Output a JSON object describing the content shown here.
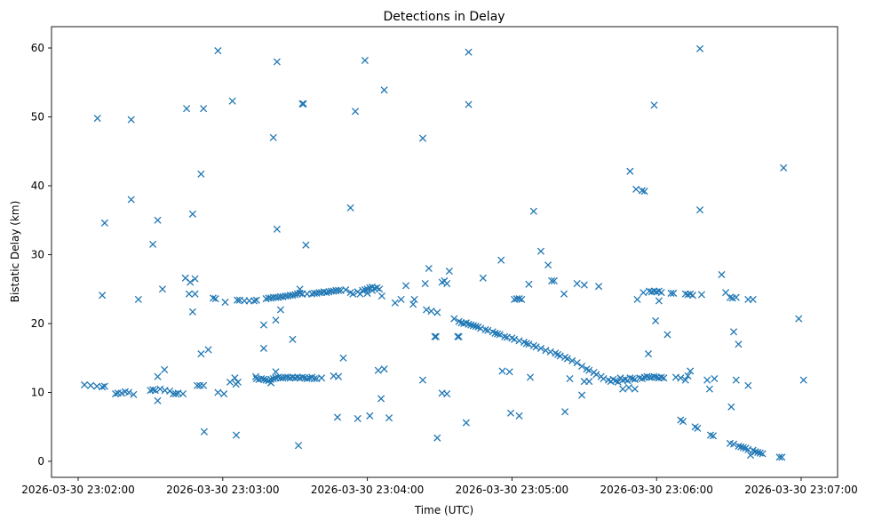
{
  "chart_data": {
    "type": "scatter",
    "title": "Detections in Delay",
    "xlabel": "Time (UTC)",
    "ylabel": "Bistatic Delay (km)",
    "x_unit": "seconds after 2026-03-30 23:02:00",
    "xlim": [
      -11,
      315
    ],
    "ylim": [
      -2.2,
      62.7
    ],
    "grid": false,
    "marker": "x",
    "color": "#1f77b4",
    "x_ticks": [
      {
        "value": 0,
        "label": "2026-03-30 23:02:00"
      },
      {
        "value": 60,
        "label": "2026-03-30 23:03:00"
      },
      {
        "value": 120,
        "label": "2026-03-30 23:04:00"
      },
      {
        "value": 180,
        "label": "2026-03-30 23:05:00"
      },
      {
        "value": 240,
        "label": "2026-03-30 23:06:00"
      },
      {
        "value": 300,
        "label": "2026-03-30 23:07:00"
      }
    ],
    "y_ticks": [
      {
        "value": 0,
        "label": "0"
      },
      {
        "value": 10,
        "label": "10"
      },
      {
        "value": 20,
        "label": "20"
      },
      {
        "value": 30,
        "label": "30"
      },
      {
        "value": 40,
        "label": "40"
      },
      {
        "value": 50,
        "label": "50"
      },
      {
        "value": 60,
        "label": "60"
      }
    ],
    "points": [
      [
        8,
        49.8
      ],
      [
        11,
        34.6
      ],
      [
        10,
        24.1
      ],
      [
        22,
        49.6
      ],
      [
        22,
        38
      ],
      [
        25,
        23.5
      ],
      [
        31,
        31.5
      ],
      [
        33,
        35
      ],
      [
        35,
        25
      ],
      [
        45,
        51.2
      ],
      [
        52,
        51.2
      ],
      [
        51,
        41.7
      ],
      [
        47.5,
        35.9
      ],
      [
        44.5,
        26.6
      ],
      [
        46,
        24.3
      ],
      [
        48.5,
        24.3
      ],
      [
        46.5,
        26
      ],
      [
        48.5,
        26.5
      ],
      [
        47.5,
        21.7
      ],
      [
        51,
        15.6
      ],
      [
        54,
        16.2
      ],
      [
        58,
        59.6
      ],
      [
        56,
        23.7
      ],
      [
        57,
        23.6
      ],
      [
        64,
        52.3
      ],
      [
        61,
        23.1
      ],
      [
        66,
        23.4
      ],
      [
        67,
        23.4
      ],
      [
        69,
        23.3
      ],
      [
        71,
        23.3
      ],
      [
        73,
        23.3
      ],
      [
        74,
        23.4
      ],
      [
        81,
        47
      ],
      [
        82.5,
        58
      ],
      [
        82.5,
        33.7
      ],
      [
        93,
        51.9
      ],
      [
        93.5,
        51.9
      ],
      [
        94.5,
        31.4
      ],
      [
        77,
        19.8
      ],
      [
        82,
        20.5
      ],
      [
        84,
        22
      ],
      [
        77,
        16.4
      ],
      [
        89,
        17.7
      ],
      [
        92,
        25
      ],
      [
        113,
        36.8
      ],
      [
        115,
        50.8
      ],
      [
        119,
        58.2
      ],
      [
        127,
        53.9
      ],
      [
        110,
        15
      ],
      [
        126,
        24
      ],
      [
        131.5,
        23
      ],
      [
        134,
        23.5
      ],
      [
        136,
        25.5
      ],
      [
        139.5,
        23.5
      ],
      [
        139,
        22.8
      ],
      [
        143,
        46.9
      ],
      [
        144,
        25.8
      ],
      [
        145.5,
        28
      ],
      [
        144.5,
        22
      ],
      [
        146.5,
        21.8
      ],
      [
        148,
        18.1
      ],
      [
        148.5,
        18.1
      ],
      [
        149,
        21.6
      ],
      [
        151,
        26
      ],
      [
        152,
        26.2
      ],
      [
        153,
        25.8
      ],
      [
        154,
        27.6
      ],
      [
        156,
        20.7
      ],
      [
        157.5,
        18.1
      ],
      [
        158,
        18.1
      ],
      [
        162,
        59.4
      ],
      [
        162,
        51.8
      ],
      [
        168,
        26.6
      ],
      [
        175.5,
        29.2
      ],
      [
        189,
        36.3
      ],
      [
        192,
        30.5
      ],
      [
        195,
        28.5
      ],
      [
        196.5,
        26.2
      ],
      [
        197.5,
        26.2
      ],
      [
        187,
        25.7
      ],
      [
        201.6,
        24.3
      ],
      [
        207,
        25.8
      ],
      [
        210,
        25.6
      ],
      [
        216,
        25.4
      ],
      [
        181,
        23.5
      ],
      [
        182,
        23.6
      ],
      [
        183,
        23.6
      ],
      [
        184,
        23.5
      ],
      [
        229,
        42.1
      ],
      [
        231.5,
        39.5
      ],
      [
        234,
        39.3
      ],
      [
        235,
        39.2
      ],
      [
        239,
        51.7
      ],
      [
        258,
        59.9
      ],
      [
        258,
        36.5
      ],
      [
        292.7,
        42.6
      ],
      [
        299,
        20.7
      ],
      [
        301,
        11.8
      ],
      [
        232,
        23.5
      ],
      [
        234.5,
        24.5
      ],
      [
        237,
        24.7
      ],
      [
        238,
        24.6
      ],
      [
        239,
        24.7
      ],
      [
        240,
        24.6
      ],
      [
        241,
        24.7
      ],
      [
        242,
        24.5
      ],
      [
        239.6,
        20.4
      ],
      [
        244.5,
        18.4
      ],
      [
        236.6,
        15.6
      ],
      [
        241,
        23.3
      ],
      [
        246,
        24.4
      ],
      [
        247,
        24.4
      ],
      [
        252,
        24.3
      ],
      [
        253,
        24.2
      ],
      [
        254,
        24.3
      ],
      [
        255,
        24.1
      ],
      [
        258.7,
        24.2
      ],
      [
        267,
        27.1
      ],
      [
        268.7,
        24.5
      ],
      [
        270.5,
        23.8
      ],
      [
        271.5,
        23.7
      ],
      [
        273,
        23.8
      ],
      [
        272,
        18.8
      ],
      [
        274,
        17
      ],
      [
        278,
        23.5
      ],
      [
        280,
        23.5
      ],
      [
        271,
        7.9
      ],
      [
        273,
        11.8
      ],
      [
        278,
        11
      ],
      [
        264,
        12
      ],
      [
        261,
        11.8
      ],
      [
        262,
        10.5
      ],
      [
        250,
        6
      ],
      [
        251,
        5.8
      ],
      [
        256,
        5
      ],
      [
        257,
        4.8
      ],
      [
        262.4,
        3.8
      ],
      [
        263.5,
        3.7
      ],
      [
        270.5,
        2.6
      ],
      [
        272,
        2.5
      ],
      [
        274,
        2.2
      ],
      [
        275,
        2.1
      ],
      [
        276,
        2.0
      ],
      [
        277,
        1.9
      ],
      [
        278,
        1.7
      ],
      [
        279,
        0.9
      ],
      [
        280,
        1.6
      ],
      [
        281,
        1.4
      ],
      [
        282,
        1.3
      ],
      [
        283,
        1.2
      ],
      [
        284,
        1.1
      ],
      [
        291,
        0.6
      ],
      [
        292,
        0.6
      ],
      [
        2.6,
        11.1
      ],
      [
        5.2,
        11
      ],
      [
        7.8,
        10.9
      ],
      [
        10,
        10.8
      ],
      [
        11,
        10.9
      ],
      [
        15.5,
        9.8
      ],
      [
        16.5,
        9.9
      ],
      [
        18,
        9.9
      ],
      [
        19.5,
        10.1
      ],
      [
        21,
        10
      ],
      [
        23,
        9.7
      ],
      [
        30,
        10.3
      ],
      [
        31,
        10.4
      ],
      [
        32,
        10.3
      ],
      [
        33,
        8.8
      ],
      [
        33,
        12.3
      ],
      [
        34,
        10.5
      ],
      [
        35.8,
        13.3
      ],
      [
        36,
        10.3
      ],
      [
        38,
        10.2
      ],
      [
        39.5,
        9.8
      ],
      [
        40.5,
        9.8
      ],
      [
        41.5,
        9.9
      ],
      [
        43.5,
        9.8
      ],
      [
        49.4,
        11
      ],
      [
        50.5,
        11
      ],
      [
        52,
        11
      ],
      [
        52.3,
        4.3
      ],
      [
        58,
        10
      ],
      [
        60.5,
        9.8
      ],
      [
        63,
        11.5
      ],
      [
        65,
        12.1
      ],
      [
        65.5,
        11.2
      ],
      [
        65.6,
        3.8
      ],
      [
        66.3,
        11.5
      ],
      [
        73.7,
        12.3
      ],
      [
        91.4,
        2.3
      ],
      [
        74,
        12
      ],
      [
        75,
        11.9
      ],
      [
        76,
        12
      ],
      [
        77,
        11.9
      ],
      [
        78,
        11.8
      ],
      [
        79,
        11.7
      ],
      [
        80,
        11.9
      ],
      [
        81,
        12
      ],
      [
        82,
        13
      ],
      [
        82,
        12.1
      ],
      [
        83,
        12.2
      ],
      [
        84,
        12.1
      ],
      [
        85,
        12.1
      ],
      [
        86,
        12.2
      ],
      [
        87,
        12.2
      ],
      [
        88,
        12.1
      ],
      [
        89,
        12.2
      ],
      [
        90,
        12.1
      ],
      [
        91,
        12.2
      ],
      [
        92,
        12.1
      ],
      [
        93,
        12.2
      ],
      [
        94,
        12.1
      ],
      [
        95,
        12
      ],
      [
        96,
        12.1
      ],
      [
        97,
        12.2
      ],
      [
        98,
        12
      ],
      [
        80,
        11.4
      ],
      [
        99,
        12
      ],
      [
        101,
        12.1
      ],
      [
        106,
        12.4
      ],
      [
        108,
        12.3
      ],
      [
        107.6,
        6.4
      ],
      [
        116,
        6.2
      ],
      [
        121,
        6.6
      ],
      [
        124.5,
        13.2
      ],
      [
        127,
        13.4
      ],
      [
        125.7,
        9.1
      ],
      [
        129,
        6.3
      ],
      [
        143,
        11.8
      ],
      [
        149,
        3.4
      ],
      [
        151,
        9.9
      ],
      [
        153,
        9.8
      ],
      [
        161,
        5.6
      ],
      [
        176,
        13.1
      ],
      [
        179,
        13
      ],
      [
        179.5,
        7
      ],
      [
        183,
        6.6
      ],
      [
        187.6,
        12.2
      ],
      [
        202,
        7.2
      ],
      [
        204,
        12
      ],
      [
        209,
        9.6
      ],
      [
        210,
        11.6
      ],
      [
        212,
        11.6
      ],
      [
        78,
        23.6
      ],
      [
        79,
        23.7
      ],
      [
        80,
        23.7
      ],
      [
        81,
        23.8
      ],
      [
        82,
        23.8
      ],
      [
        83,
        23.8
      ],
      [
        84,
        23.9
      ],
      [
        85,
        23.9
      ],
      [
        86,
        24
      ],
      [
        87,
        24
      ],
      [
        88,
        24.1
      ],
      [
        89,
        24.1
      ],
      [
        90,
        24.2
      ],
      [
        91,
        24.3
      ],
      [
        92,
        24.4
      ],
      [
        93,
        24.3
      ],
      [
        95,
        24.3
      ],
      [
        97,
        24.3
      ],
      [
        98,
        24.4
      ],
      [
        99,
        24.4
      ],
      [
        100,
        24.5
      ],
      [
        101,
        24.5
      ],
      [
        102,
        24.6
      ],
      [
        103,
        24.5
      ],
      [
        104,
        24.6
      ],
      [
        105,
        24.7
      ],
      [
        106,
        24.7
      ],
      [
        107,
        24.8
      ],
      [
        108,
        24.8
      ],
      [
        109,
        24.8
      ],
      [
        111,
        24.9
      ],
      [
        113,
        24.5
      ],
      [
        114,
        24.3
      ],
      [
        116,
        24.6
      ],
      [
        117,
        24.3
      ],
      [
        118,
        24.8
      ],
      [
        119,
        24.9
      ],
      [
        120,
        25
      ],
      [
        121,
        25.2
      ],
      [
        122,
        25.3
      ],
      [
        123,
        25.1
      ],
      [
        124,
        25.2
      ],
      [
        125,
        25
      ],
      [
        120,
        24.4
      ],
      [
        122,
        24.8
      ],
      [
        158,
        20.3
      ],
      [
        159,
        20.1
      ],
      [
        160,
        20
      ],
      [
        161,
        20.1
      ],
      [
        162,
        19.9
      ],
      [
        163,
        19.8
      ],
      [
        164,
        19.7
      ],
      [
        165,
        19.6
      ],
      [
        166,
        19.5
      ],
      [
        167,
        19.3
      ],
      [
        169,
        19.1
      ],
      [
        170,
        19
      ],
      [
        172,
        18.8
      ],
      [
        173,
        18.6
      ],
      [
        174,
        18.5
      ],
      [
        175,
        18.4
      ],
      [
        177,
        18.1
      ],
      [
        178,
        18
      ],
      [
        180,
        17.9
      ],
      [
        181,
        17.7
      ],
      [
        183,
        17.5
      ],
      [
        185,
        17.3
      ],
      [
        186,
        17.1
      ],
      [
        187,
        17
      ],
      [
        189,
        16.8
      ],
      [
        190,
        16.6
      ],
      [
        192,
        16.4
      ],
      [
        194,
        16.1
      ],
      [
        196,
        15.9
      ],
      [
        198,
        15.7
      ],
      [
        199,
        15.5
      ],
      [
        200,
        15.3
      ],
      [
        202,
        15.1
      ],
      [
        203,
        14.9
      ],
      [
        205,
        14.6
      ],
      [
        207,
        14.3
      ],
      [
        209,
        13.8
      ],
      [
        211,
        13.4
      ],
      [
        212,
        13.2
      ],
      [
        214,
        12.9
      ],
      [
        215,
        12.6
      ],
      [
        217,
        12.3
      ],
      [
        218,
        12
      ],
      [
        220,
        11.8
      ],
      [
        221,
        11.6
      ],
      [
        223,
        11.7
      ],
      [
        224,
        11.5
      ],
      [
        226,
        11.8
      ],
      [
        227,
        11.9
      ],
      [
        228,
        11.7
      ],
      [
        222,
        11.9
      ],
      [
        225,
        12.1
      ],
      [
        226,
        10.5
      ],
      [
        228.5,
        10.7
      ],
      [
        231,
        10.5
      ],
      [
        229,
        12.1
      ],
      [
        230,
        12
      ],
      [
        231,
        11.9
      ],
      [
        233,
        12.1
      ],
      [
        234,
        12
      ],
      [
        235,
        12.2
      ],
      [
        236,
        12.3
      ],
      [
        237,
        12.2
      ],
      [
        238,
        12.2
      ],
      [
        239,
        12.3
      ],
      [
        240,
        12.2
      ],
      [
        241,
        12.1
      ],
      [
        242,
        12.2
      ],
      [
        243,
        12.1
      ],
      [
        248,
        12.2
      ],
      [
        250,
        12.1
      ],
      [
        253,
        12.4
      ],
      [
        254,
        13.1
      ],
      [
        252,
        11.8
      ]
    ]
  }
}
